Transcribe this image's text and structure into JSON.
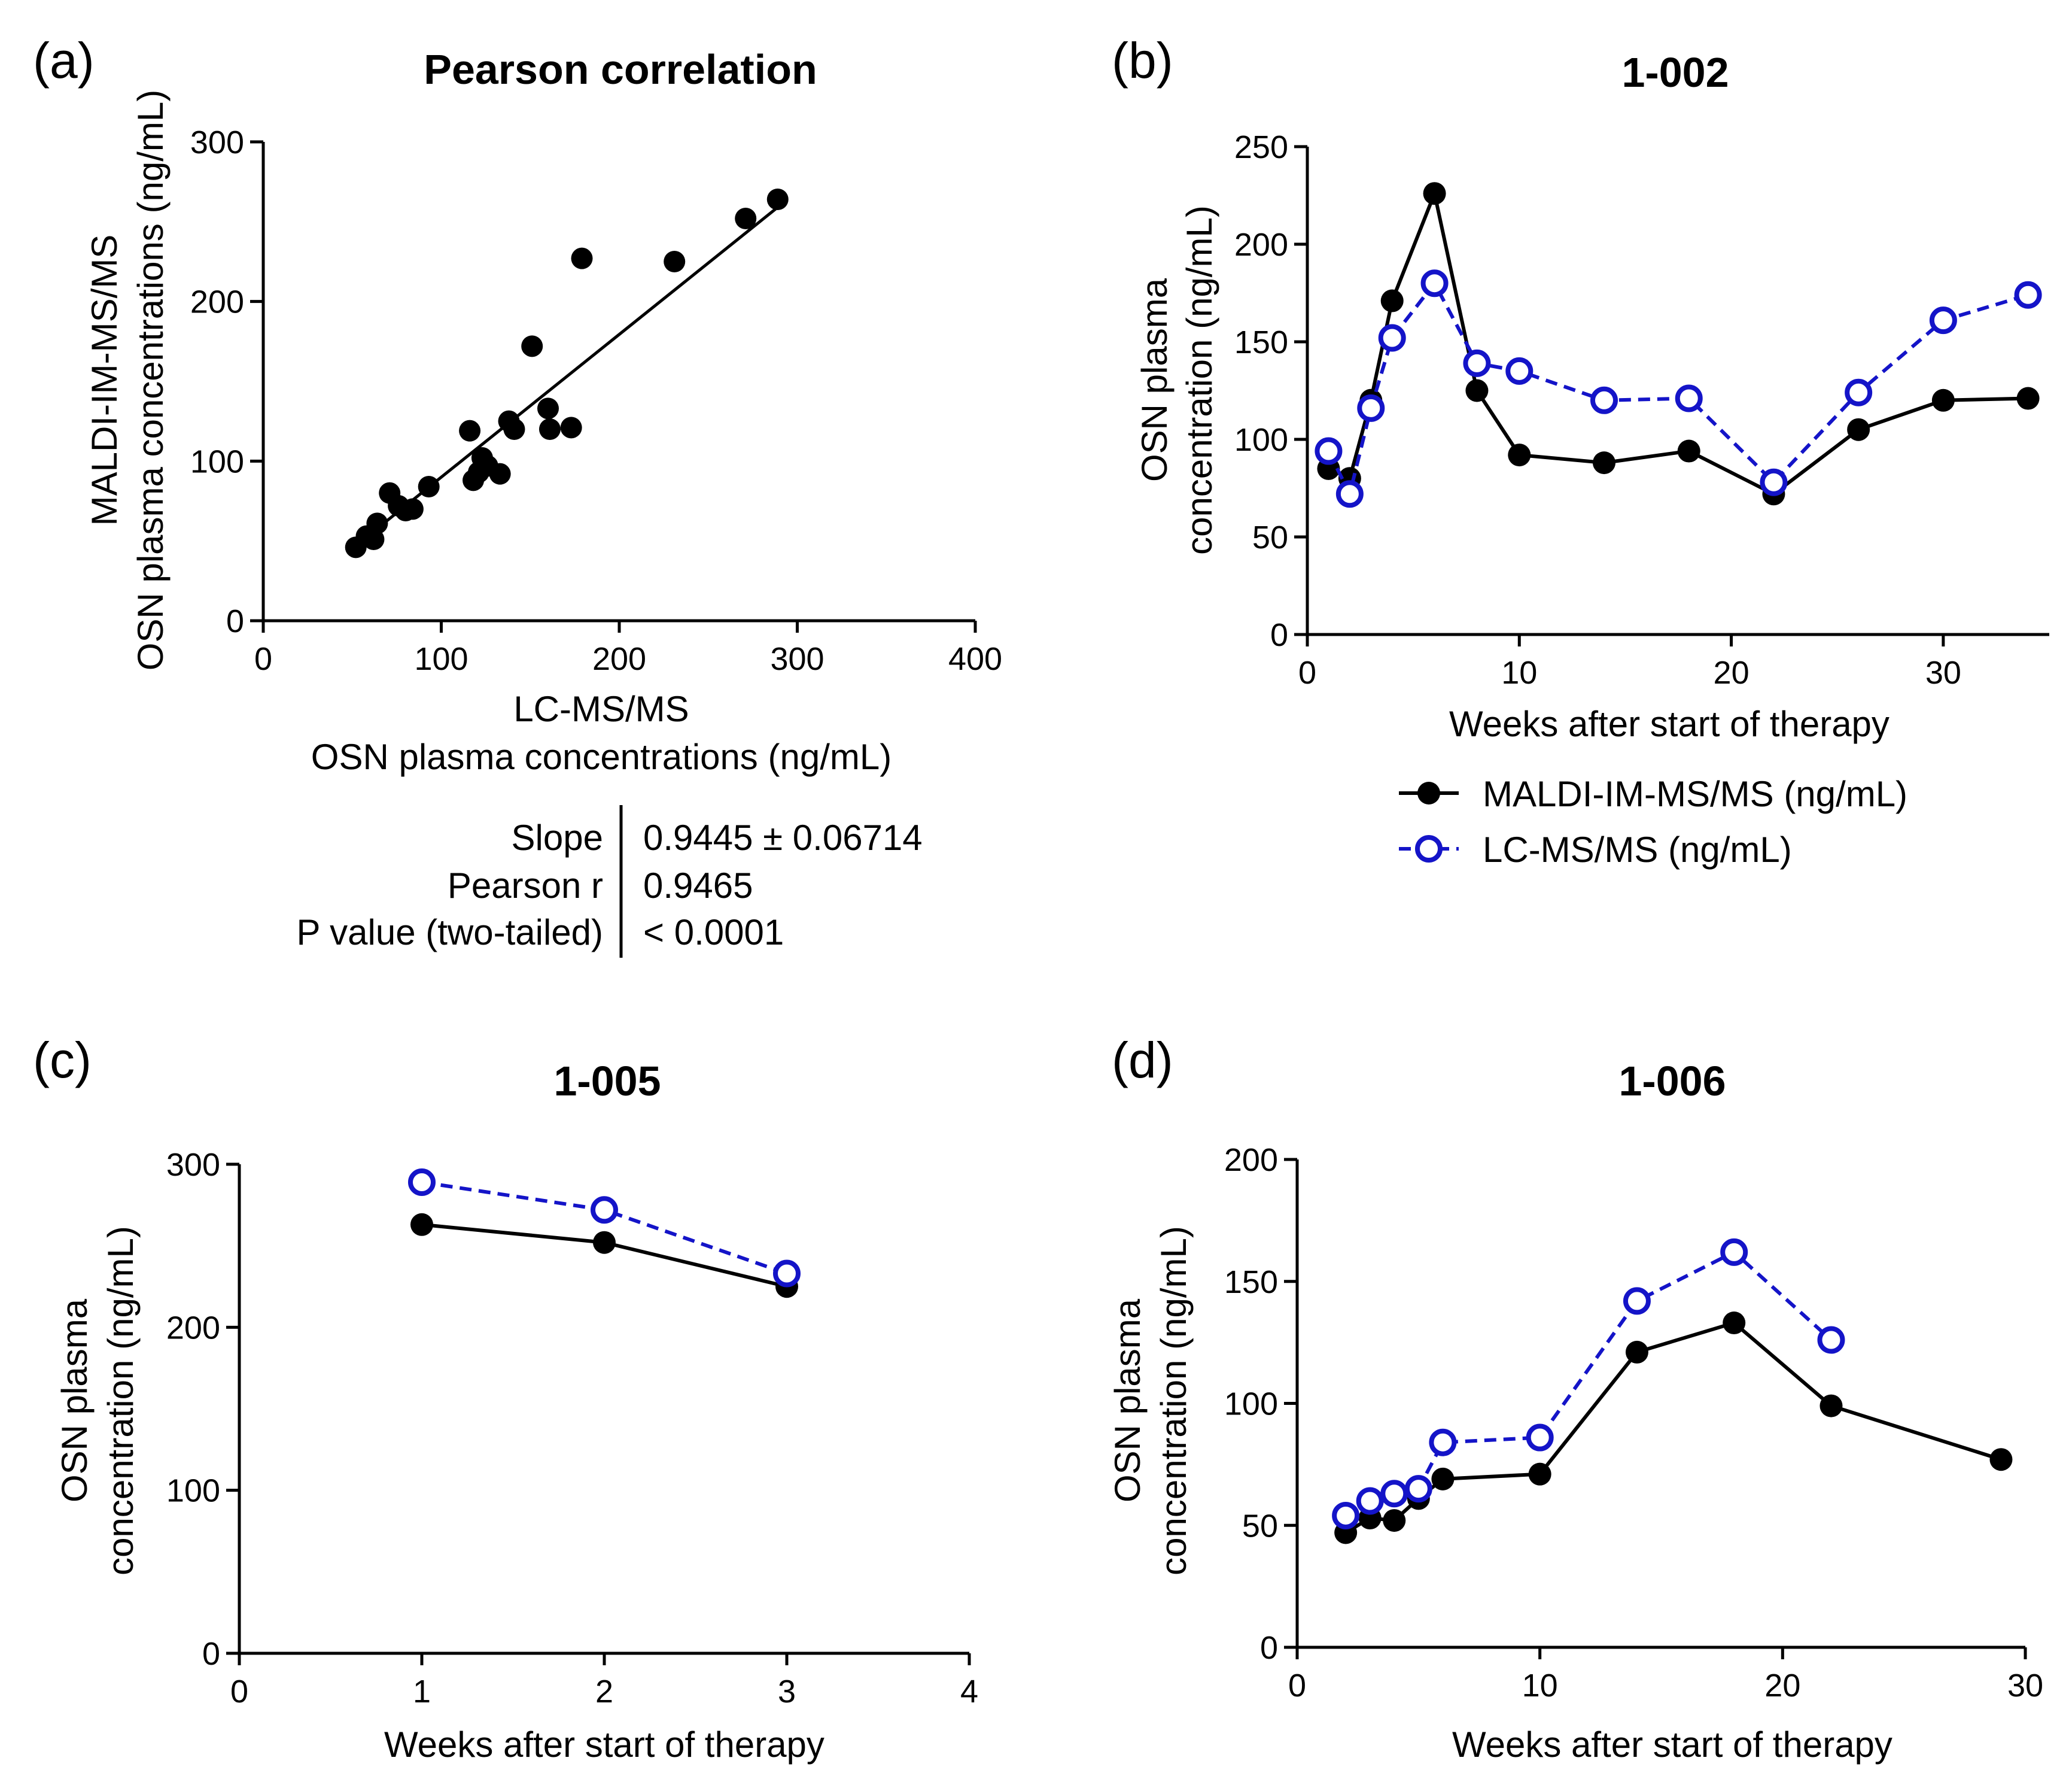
{
  "panels": [
    {
      "id": "a",
      "letter": "(a)"
    },
    {
      "id": "b",
      "letter": "(b)"
    },
    {
      "id": "c",
      "letter": "(c)"
    },
    {
      "id": "d",
      "letter": "(d)"
    }
  ],
  "colors": {
    "maldi": "#000000",
    "lcms": "#1414c8",
    "axis": "#000000"
  },
  "stats": {
    "labels": [
      "Slope",
      "Pearson r",
      "P value (two-tailed)"
    ],
    "values": [
      "0.9445 ± 0.06714",
      "0.9465",
      "< 0.0001"
    ]
  },
  "legend": {
    "items": [
      {
        "label": "MALDI-IM-MS/MS (ng/mL)",
        "series": "maldi"
      },
      {
        "label": "LC-MS/MS (ng/mL)",
        "series": "lcms"
      }
    ]
  },
  "chart_data": [
    {
      "panel": "a",
      "type": "scatter",
      "title": "Pearson correlation",
      "xlabel_lines": [
        "LC-MS/MS",
        "OSN plasma concentrations (ng/mL)"
      ],
      "ylabel_lines": [
        "MALDI-IM-MS/MS",
        "OSN plasma concentrations (ng/mL)"
      ],
      "xlim": [
        0,
        400
      ],
      "ylim": [
        0,
        300
      ],
      "xticks": [
        0,
        100,
        200,
        300,
        400
      ],
      "yticks": [
        0,
        100,
        200,
        300
      ],
      "points": [
        [
          52,
          46
        ],
        [
          58,
          53
        ],
        [
          62,
          51
        ],
        [
          64,
          61
        ],
        [
          71,
          80
        ],
        [
          76,
          72
        ],
        [
          80,
          69
        ],
        [
          84,
          70
        ],
        [
          93,
          84
        ],
        [
          116,
          119
        ],
        [
          118,
          88
        ],
        [
          121,
          93
        ],
        [
          123,
          102
        ],
        [
          126,
          97
        ],
        [
          133,
          92
        ],
        [
          138,
          125
        ],
        [
          141,
          120
        ],
        [
          151,
          172
        ],
        [
          160,
          133
        ],
        [
          161,
          120
        ],
        [
          173,
          121
        ],
        [
          179,
          227
        ],
        [
          231,
          225
        ],
        [
          271,
          252
        ],
        [
          289,
          264
        ]
      ],
      "fit": {
        "x": [
          52,
          289
        ],
        "y": [
          47,
          259
        ]
      }
    },
    {
      "panel": "b",
      "type": "line",
      "title": "1-002",
      "xlabel": "Weeks after start of therapy",
      "ylabel_lines": [
        "OSN plasma",
        "concentration (ng/mL)"
      ],
      "xlim": [
        0,
        35
      ],
      "ylim": [
        0,
        250
      ],
      "xticks": [
        0,
        10,
        20,
        30
      ],
      "yticks": [
        0,
        50,
        100,
        150,
        200,
        250
      ],
      "series": [
        {
          "name": "MALDI-IM-MS/MS (ng/mL)",
          "key": "maldi",
          "x": [
            1,
            2,
            3,
            4,
            6,
            8,
            10,
            14,
            18,
            22,
            26,
            30,
            34
          ],
          "y": [
            85,
            80,
            120,
            171,
            226,
            125,
            92,
            88,
            94,
            72,
            105,
            120,
            121
          ]
        },
        {
          "name": "LC-MS/MS (ng/mL)",
          "key": "lcms",
          "x": [
            1,
            2,
            3,
            4,
            6,
            8,
            10,
            14,
            18,
            22,
            26,
            30,
            34
          ],
          "y": [
            94,
            72,
            116,
            152,
            180,
            139,
            135,
            120,
            121,
            78,
            124,
            161,
            174
          ]
        }
      ]
    },
    {
      "panel": "c",
      "type": "line",
      "title": "1-005",
      "xlabel": "Weeks after start of therapy",
      "ylabel_lines": [
        "OSN plasma",
        "concentration (ng/mL)"
      ],
      "xlim": [
        0,
        4
      ],
      "ylim": [
        0,
        300
      ],
      "xticks": [
        0,
        1,
        2,
        3,
        4
      ],
      "yticks": [
        0,
        100,
        200,
        300
      ],
      "series": [
        {
          "name": "MALDI-IM-MS/MS (ng/mL)",
          "key": "maldi",
          "x": [
            1,
            2,
            3
          ],
          "y": [
            263,
            252,
            225
          ]
        },
        {
          "name": "LC-MS/MS (ng/mL)",
          "key": "lcms",
          "x": [
            1,
            2,
            3
          ],
          "y": [
            289,
            272,
            233
          ]
        }
      ]
    },
    {
      "panel": "d",
      "type": "line",
      "title": "1-006",
      "xlabel": "Weeks after start of therapy",
      "ylabel_lines": [
        "OSN plasma",
        "concentration (ng/mL)"
      ],
      "xlim": [
        0,
        30
      ],
      "ylim": [
        0,
        200
      ],
      "xticks": [
        0,
        10,
        20,
        30
      ],
      "yticks": [
        0,
        50,
        100,
        150,
        200
      ],
      "series": [
        {
          "name": "MALDI-IM-MS/MS (ng/mL)",
          "key": "maldi",
          "x": [
            2,
            3,
            4,
            5,
            6,
            10,
            14,
            18,
            22,
            29
          ],
          "y": [
            47,
            53,
            52,
            61,
            69,
            71,
            121,
            133,
            99,
            77
          ]
        },
        {
          "name": "LC-MS/MS (ng/mL)",
          "key": "lcms",
          "x": [
            2,
            3,
            4,
            5,
            6,
            10,
            14,
            18,
            22
          ],
          "y": [
            54,
            60,
            63,
            65,
            84,
            86,
            142,
            162,
            126
          ]
        }
      ]
    }
  ]
}
